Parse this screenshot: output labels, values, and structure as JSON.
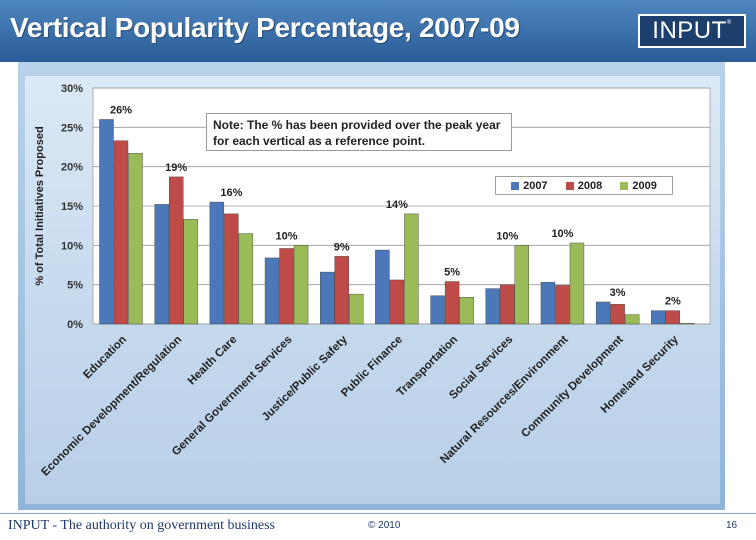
{
  "slide": {
    "title": "Vertical Popularity Percentage, 2007-09",
    "logo_text": "INPUT",
    "logo_mark": "®",
    "footer_tagline": "INPUT - The authority on government business",
    "copyright": "© 2010",
    "page_number": "16"
  },
  "colors": {
    "series_2007": "#4a78b8",
    "series_2008": "#be4b48",
    "series_2009": "#9bbb59"
  },
  "chart_data": {
    "type": "bar",
    "title": "",
    "xlabel": "",
    "ylabel": "% of Total Initiatives Proposed",
    "ylim": [
      0,
      30
    ],
    "yticks": [
      "0%",
      "5%",
      "10%",
      "15%",
      "20%",
      "25%",
      "30%"
    ],
    "grid": true,
    "legend_position": "top-right",
    "note": {
      "line1": "Note: The % has been provided over the peak year",
      "line2": "for each vertical as a reference point."
    },
    "categories": [
      "Education",
      "Economic Development/Regulation",
      "Health Care",
      "General Government Services",
      "Justice/Public Safety",
      "Public Finance",
      "Transportation",
      "Social Services",
      "Natural Resources/Environment",
      "Community Development",
      "Homeland Security"
    ],
    "series": [
      {
        "name": "2007",
        "values": [
          26,
          15.2,
          15.5,
          8.4,
          6.6,
          9.4,
          3.6,
          4.5,
          5.3,
          2.8,
          1.7
        ]
      },
      {
        "name": "2008",
        "values": [
          23.3,
          18.7,
          14.0,
          9.6,
          8.6,
          5.6,
          5.4,
          5.0,
          4.9,
          2.5,
          1.7
        ]
      },
      {
        "name": "2009",
        "values": [
          21.7,
          13.3,
          11.5,
          10.0,
          3.8,
          14.0,
          3.4,
          10.0,
          10.3,
          1.2,
          0.1
        ]
      }
    ],
    "data_labels": [
      "26%",
      "19%",
      "16%",
      "10%",
      "9%",
      "14%",
      "5%",
      "10%",
      "10%",
      "3%",
      "2%"
    ]
  }
}
